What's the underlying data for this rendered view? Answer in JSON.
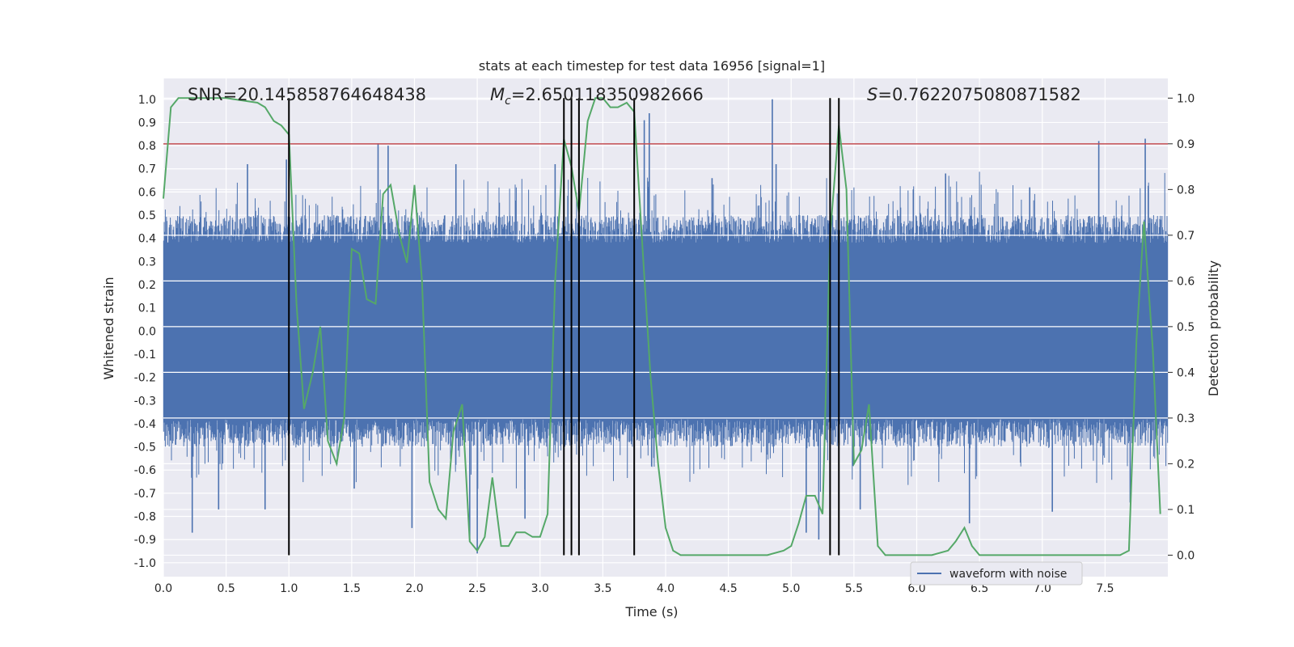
{
  "chart_data": {
    "type": "line",
    "title": "stats at each timestep for test data 16956 [signal=1]",
    "xlabel": "Time (s)",
    "ylabel_left": "Whitened strain",
    "ylabel_right": "Detection probability",
    "xlim": [
      0.0,
      8.0
    ],
    "ylim_left": [
      -1.06,
      1.09
    ],
    "ylim_right": [
      -0.047,
      1.043
    ],
    "x_ticks": [
      "0.0",
      "0.5",
      "1.0",
      "1.5",
      "2.0",
      "2.5",
      "3.0",
      "3.5",
      "4.0",
      "4.5",
      "5.0",
      "5.5",
      "6.0",
      "6.5",
      "7.0",
      "7.5"
    ],
    "y_ticks_left": [
      "1.0",
      "0.9",
      "0.8",
      "0.7",
      "0.6",
      "0.5",
      "0.4",
      "0.3",
      "0.2",
      "0.1",
      "0.0",
      "-0.1",
      "-0.2",
      "-0.3",
      "-0.4",
      "-0.5",
      "-0.6",
      "-0.7",
      "-0.8",
      "-0.9",
      "-1.0"
    ],
    "y_ticks_right": [
      "1.0",
      "0.9",
      "0.8",
      "0.7",
      "0.6",
      "0.5",
      "0.4",
      "0.3",
      "0.2",
      "0.1",
      "0.0"
    ],
    "annotations": {
      "snr": "SNR=20.145858764648438",
      "mc_prefix": "M",
      "mc_sub": "c",
      "mc_value": "=2.650118350982666",
      "s_prefix": "S",
      "s_value": "=0.7622075080871582"
    },
    "threshold": {
      "value": 0.9,
      "axis": "right",
      "color": "#c44e52"
    },
    "event_lines_x": [
      1.0,
      3.19,
      3.25,
      3.31,
      3.75,
      5.31,
      5.38
    ],
    "waveform": {
      "name": "waveform with noise",
      "color": "#4c72b0",
      "core_amplitude": 0.38,
      "typical_max": 0.5,
      "spikes": [
        {
          "x": 0.23,
          "y": -0.87
        },
        {
          "x": 0.44,
          "y": -0.77
        },
        {
          "x": 0.67,
          "y": 0.72
        },
        {
          "x": 0.81,
          "y": -0.77
        },
        {
          "x": 0.98,
          "y": 0.74
        },
        {
          "x": 1.71,
          "y": 0.81
        },
        {
          "x": 1.79,
          "y": 0.8
        },
        {
          "x": 1.98,
          "y": -0.85
        },
        {
          "x": 2.5,
          "y": -0.96
        },
        {
          "x": 2.44,
          "y": -0.91
        },
        {
          "x": 2.88,
          "y": -0.81
        },
        {
          "x": 3.12,
          "y": 0.72
        },
        {
          "x": 3.25,
          "y": 0.92
        },
        {
          "x": 3.83,
          "y": 0.91
        },
        {
          "x": 3.87,
          "y": 0.94
        },
        {
          "x": 4.85,
          "y": 1.0
        },
        {
          "x": 4.88,
          "y": 0.72
        },
        {
          "x": 5.12,
          "y": -0.87
        },
        {
          "x": 5.22,
          "y": -0.9
        },
        {
          "x": 6.23,
          "y": 0.68
        },
        {
          "x": 6.42,
          "y": -0.83
        },
        {
          "x": 7.45,
          "y": 0.82
        },
        {
          "x": 7.82,
          "y": 0.83
        },
        {
          "x": 7.08,
          "y": -0.78
        },
        {
          "x": 5.55,
          "y": -0.77
        },
        {
          "x": 1.52,
          "y": -0.68
        },
        {
          "x": 2.33,
          "y": 0.72
        },
        {
          "x": 4.37,
          "y": 0.66
        },
        {
          "x": 6.9,
          "y": 0.62
        },
        {
          "x": 7.7,
          "y": -0.74
        }
      ]
    },
    "probability": {
      "color": "#55a868",
      "x": [
        0.0,
        0.06,
        0.12,
        0.25,
        0.5,
        0.75,
        0.81,
        0.88,
        0.94,
        1.0,
        1.06,
        1.12,
        1.19,
        1.25,
        1.31,
        1.38,
        1.44,
        1.5,
        1.56,
        1.62,
        1.69,
        1.75,
        1.81,
        1.88,
        1.94,
        2.0,
        2.06,
        2.12,
        2.19,
        2.25,
        2.31,
        2.38,
        2.44,
        2.5,
        2.56,
        2.62,
        2.69,
        2.75,
        2.81,
        2.88,
        2.94,
        3.0,
        3.06,
        3.12,
        3.19,
        3.25,
        3.31,
        3.38,
        3.44,
        3.5,
        3.56,
        3.62,
        3.69,
        3.75,
        3.81,
        3.88,
        3.94,
        4.0,
        4.06,
        4.12,
        4.25,
        4.5,
        4.69,
        4.81,
        4.94,
        5.0,
        5.06,
        5.12,
        5.19,
        5.25,
        5.31,
        5.38,
        5.44,
        5.5,
        5.56,
        5.62,
        5.69,
        5.75,
        5.81,
        6.0,
        6.12,
        6.25,
        6.31,
        6.38,
        6.44,
        6.5,
        6.62,
        6.75,
        7.0,
        7.25,
        7.5,
        7.62,
        7.69,
        7.75,
        7.81,
        7.88,
        7.94
      ],
      "y": [
        0.78,
        0.98,
        1.0,
        1.0,
        1.0,
        0.99,
        0.98,
        0.95,
        0.94,
        0.92,
        0.55,
        0.32,
        0.4,
        0.5,
        0.25,
        0.2,
        0.3,
        0.67,
        0.66,
        0.56,
        0.55,
        0.79,
        0.81,
        0.7,
        0.64,
        0.81,
        0.6,
        0.16,
        0.1,
        0.08,
        0.27,
        0.33,
        0.03,
        0.01,
        0.04,
        0.17,
        0.02,
        0.02,
        0.05,
        0.05,
        0.04,
        0.04,
        0.09,
        0.6,
        0.91,
        0.85,
        0.75,
        0.95,
        1.0,
        1.0,
        0.98,
        0.98,
        0.99,
        0.97,
        0.7,
        0.39,
        0.2,
        0.06,
        0.01,
        0.0,
        0.0,
        0.0,
        0.0,
        0.0,
        0.01,
        0.02,
        0.07,
        0.13,
        0.13,
        0.09,
        0.7,
        0.94,
        0.8,
        0.2,
        0.23,
        0.33,
        0.02,
        0.0,
        0.0,
        0.0,
        0.0,
        0.01,
        0.03,
        0.06,
        0.02,
        0.0,
        0.0,
        0.0,
        0.0,
        0.0,
        0.0,
        0.0,
        0.01,
        0.47,
        0.73,
        0.45,
        0.09
      ]
    },
    "legend": {
      "label": "waveform with noise",
      "placement": "bottom-right"
    },
    "grid": true
  }
}
